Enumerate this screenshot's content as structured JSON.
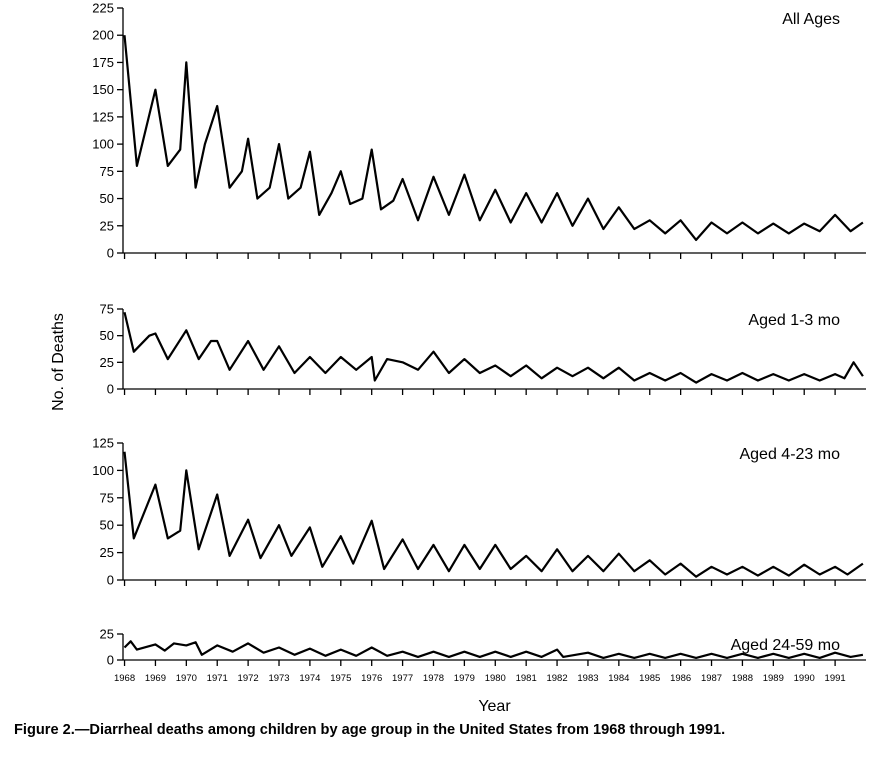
{
  "chart_data": [
    {
      "type": "line",
      "panel_label": "All Ages",
      "ylim": [
        0,
        225
      ],
      "yticks": [
        0,
        25,
        50,
        75,
        100,
        125,
        150,
        175,
        200,
        225
      ],
      "series": [
        {
          "x": [
            1968.0,
            1968.4,
            1969.0,
            1969.4,
            1969.8,
            1970.0,
            1970.3,
            1970.6,
            1971.0,
            1971.4,
            1971.8,
            1972.0,
            1972.3,
            1972.7,
            1973.0,
            1973.3,
            1973.7,
            1974.0,
            1974.3,
            1974.7,
            1975.0,
            1975.3,
            1975.7,
            1976.0,
            1976.3,
            1976.7,
            1977.0,
            1977.5,
            1978.0,
            1978.5,
            1979.0,
            1979.5,
            1980.0,
            1980.5,
            1981.0,
            1981.5,
            1982.0,
            1982.5,
            1983.0,
            1983.5,
            1984.0,
            1984.5,
            1985.0,
            1985.5,
            1986.0,
            1986.5,
            1987.0,
            1987.5,
            1988.0,
            1988.5,
            1989.0,
            1989.5,
            1990.0,
            1990.5,
            1991.0,
            1991.5,
            1991.9
          ],
          "values": [
            200,
            80,
            150,
            80,
            95,
            175,
            60,
            100,
            135,
            60,
            75,
            105,
            50,
            60,
            100,
            50,
            60,
            93,
            35,
            55,
            75,
            45,
            50,
            95,
            40,
            48,
            68,
            30,
            70,
            35,
            72,
            30,
            58,
            28,
            55,
            28,
            55,
            25,
            50,
            22,
            42,
            22,
            30,
            18,
            30,
            12,
            28,
            18,
            28,
            18,
            27,
            18,
            27,
            20,
            35,
            20,
            28
          ]
        }
      ]
    },
    {
      "type": "line",
      "panel_label": "Aged 1-3 mo",
      "ylim": [
        0,
        75
      ],
      "yticks": [
        0,
        25,
        50,
        75
      ],
      "series": [
        {
          "x": [
            1968.0,
            1968.3,
            1968.8,
            1969.0,
            1969.4,
            1970.0,
            1970.4,
            1970.8,
            1971.0,
            1971.4,
            1972.0,
            1972.5,
            1973.0,
            1973.5,
            1974.0,
            1974.5,
            1975.0,
            1975.5,
            1976.0,
            1976.1,
            1976.5,
            1977.0,
            1977.5,
            1978.0,
            1978.5,
            1979.0,
            1979.5,
            1980.0,
            1980.5,
            1981.0,
            1981.5,
            1982.0,
            1982.5,
            1983.0,
            1983.5,
            1984.0,
            1984.5,
            1985.0,
            1985.5,
            1986.0,
            1986.5,
            1987.0,
            1987.5,
            1988.0,
            1988.5,
            1989.0,
            1989.5,
            1990.0,
            1990.5,
            1991.0,
            1991.3,
            1991.6,
            1991.9
          ],
          "values": [
            72,
            35,
            50,
            52,
            28,
            55,
            28,
            45,
            45,
            18,
            45,
            18,
            40,
            15,
            30,
            15,
            30,
            18,
            30,
            8,
            28,
            25,
            18,
            35,
            15,
            28,
            15,
            22,
            12,
            22,
            10,
            20,
            12,
            20,
            10,
            20,
            8,
            15,
            8,
            15,
            6,
            14,
            8,
            15,
            8,
            14,
            8,
            14,
            8,
            14,
            10,
            25,
            12
          ]
        }
      ]
    },
    {
      "type": "line",
      "panel_label": "Aged 4-23 mo",
      "ylim": [
        0,
        125
      ],
      "yticks": [
        0,
        25,
        50,
        75,
        100,
        125
      ],
      "series": [
        {
          "x": [
            1968.0,
            1968.3,
            1969.0,
            1969.4,
            1969.8,
            1970.0,
            1970.4,
            1971.0,
            1971.4,
            1972.0,
            1972.4,
            1973.0,
            1973.4,
            1974.0,
            1974.4,
            1975.0,
            1975.4,
            1976.0,
            1976.4,
            1977.0,
            1977.5,
            1978.0,
            1978.5,
            1979.0,
            1979.5,
            1980.0,
            1980.5,
            1981.0,
            1981.5,
            1982.0,
            1982.5,
            1983.0,
            1983.5,
            1984.0,
            1984.5,
            1985.0,
            1985.5,
            1986.0,
            1986.5,
            1987.0,
            1987.5,
            1988.0,
            1988.5,
            1989.0,
            1989.5,
            1990.0,
            1990.5,
            1991.0,
            1991.4,
            1991.9
          ],
          "values": [
            117,
            38,
            87,
            38,
            45,
            100,
            28,
            78,
            22,
            55,
            20,
            50,
            22,
            48,
            12,
            40,
            15,
            54,
            10,
            37,
            10,
            32,
            8,
            32,
            10,
            32,
            10,
            22,
            8,
            28,
            8,
            22,
            8,
            24,
            8,
            18,
            5,
            15,
            3,
            12,
            5,
            12,
            4,
            12,
            4,
            14,
            5,
            12,
            5,
            15
          ]
        }
      ]
    },
    {
      "type": "line",
      "panel_label": "Aged 24-59 mo",
      "ylim": [
        0,
        25
      ],
      "yticks": [
        0,
        25
      ],
      "series": [
        {
          "x": [
            1968.0,
            1968.2,
            1968.4,
            1969.0,
            1969.3,
            1969.6,
            1970.0,
            1970.3,
            1970.5,
            1971.0,
            1971.5,
            1972.0,
            1972.5,
            1973.0,
            1973.5,
            1974.0,
            1974.5,
            1975.0,
            1975.5,
            1976.0,
            1976.5,
            1977.0,
            1977.5,
            1978.0,
            1978.5,
            1979.0,
            1979.5,
            1980.0,
            1980.5,
            1981.0,
            1981.5,
            1982.0,
            1982.2,
            1983.0,
            1983.5,
            1984.0,
            1984.5,
            1985.0,
            1985.5,
            1986.0,
            1986.5,
            1987.0,
            1987.5,
            1988.0,
            1988.5,
            1989.0,
            1989.5,
            1990.0,
            1990.5,
            1991.0,
            1991.5,
            1991.9
          ],
          "values": [
            12,
            18,
            10,
            15,
            9,
            16,
            14,
            17,
            5,
            14,
            8,
            16,
            7,
            12,
            5,
            11,
            4,
            10,
            4,
            12,
            4,
            8,
            3,
            8,
            3,
            8,
            3,
            8,
            3,
            8,
            3,
            10,
            3,
            7,
            2,
            6,
            2,
            6,
            2,
            6,
            2,
            6,
            2,
            6,
            2,
            6,
            2,
            6,
            2,
            7,
            3,
            5
          ]
        }
      ]
    }
  ],
  "x_axis": {
    "xlabel": "Year",
    "xlim": [
      1967.95,
      1992.0
    ],
    "tick_labels": [
      "1968",
      "1969",
      "1970",
      "1971",
      "1972",
      "1973",
      "1974",
      "1975",
      "1976",
      "1977",
      "1978",
      "1979",
      "1980",
      "1981",
      "1982",
      "1983",
      "1984",
      "1985",
      "1986",
      "1987",
      "1988",
      "1989",
      "1990",
      "1991"
    ]
  },
  "ylabel": "No. of Deaths",
  "caption": "Figure 2.—Diarrheal deaths among children by age group in the United States from 1968 through 1991."
}
